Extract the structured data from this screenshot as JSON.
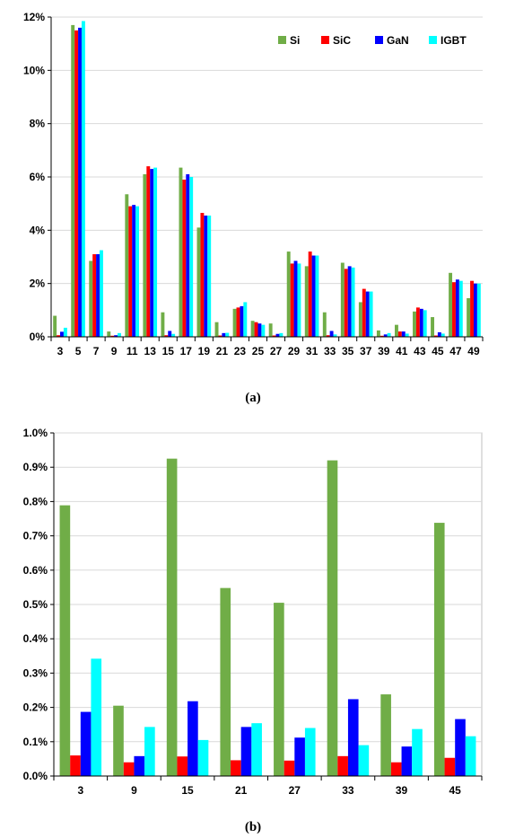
{
  "colors": {
    "Si": "#70AD47",
    "SiC": "#FF0000",
    "GaN": "#0000FF",
    "IGBT": "#00FFFF"
  },
  "chart_data": [
    {
      "type": "bar",
      "caption": "(a)",
      "categories": [
        "3",
        "5",
        "7",
        "9",
        "11",
        "13",
        "15",
        "17",
        "19",
        "21",
        "23",
        "25",
        "27",
        "29",
        "31",
        "33",
        "35",
        "37",
        "39",
        "41",
        "43",
        "45",
        "47",
        "49"
      ],
      "ylim": [
        0,
        12
      ],
      "yticks": [
        "0%",
        "2%",
        "4%",
        "6%",
        "8%",
        "10%",
        "12%"
      ],
      "grid": true,
      "legend": "top-right",
      "series": [
        {
          "name": "Si",
          "values": [
            0.79,
            11.7,
            2.85,
            0.2,
            5.35,
            6.1,
            0.92,
            6.35,
            4.1,
            0.55,
            1.05,
            0.6,
            0.5,
            3.2,
            2.65,
            0.92,
            2.78,
            1.3,
            0.24,
            0.45,
            0.95,
            0.74,
            2.4,
            1.45
          ]
        },
        {
          "name": "SiC",
          "values": [
            0.06,
            11.5,
            3.1,
            0.04,
            4.9,
            6.4,
            0.06,
            5.9,
            4.65,
            0.05,
            1.1,
            0.55,
            0.05,
            2.75,
            3.2,
            0.06,
            2.55,
            1.8,
            0.04,
            0.2,
            1.1,
            0.05,
            2.05,
            2.1
          ]
        },
        {
          "name": "GaN",
          "values": [
            0.19,
            11.6,
            3.1,
            0.06,
            4.95,
            6.3,
            0.22,
            6.1,
            4.55,
            0.14,
            1.15,
            0.5,
            0.11,
            2.85,
            3.05,
            0.22,
            2.65,
            1.7,
            0.09,
            0.2,
            1.05,
            0.17,
            2.15,
            2.0
          ]
        },
        {
          "name": "IGBT",
          "values": [
            0.34,
            11.85,
            3.25,
            0.14,
            4.9,
            6.35,
            0.11,
            6.0,
            4.55,
            0.15,
            1.3,
            0.45,
            0.14,
            2.75,
            3.05,
            0.09,
            2.6,
            1.7,
            0.14,
            0.12,
            1.0,
            0.12,
            2.1,
            2.0
          ]
        }
      ]
    },
    {
      "type": "bar",
      "caption": "(b)",
      "categories": [
        "3",
        "9",
        "15",
        "21",
        "27",
        "33",
        "39",
        "45"
      ],
      "ylim": [
        0,
        1.0
      ],
      "yticks": [
        "0.0%",
        "0.1%",
        "0.2%",
        "0.3%",
        "0.4%",
        "0.5%",
        "0.6%",
        "0.7%",
        "0.8%",
        "0.9%",
        "1.0%"
      ],
      "grid": true,
      "legend": "none",
      "series": [
        {
          "name": "Si",
          "values": [
            0.789,
            0.205,
            0.925,
            0.548,
            0.505,
            0.92,
            0.238,
            0.738
          ]
        },
        {
          "name": "SiC",
          "values": [
            0.06,
            0.04,
            0.057,
            0.046,
            0.045,
            0.058,
            0.04,
            0.053
          ]
        },
        {
          "name": "GaN",
          "values": [
            0.187,
            0.058,
            0.218,
            0.143,
            0.112,
            0.224,
            0.086,
            0.166
          ]
        },
        {
          "name": "IGBT",
          "values": [
            0.342,
            0.143,
            0.105,
            0.154,
            0.14,
            0.09,
            0.137,
            0.116
          ]
        }
      ]
    }
  ]
}
